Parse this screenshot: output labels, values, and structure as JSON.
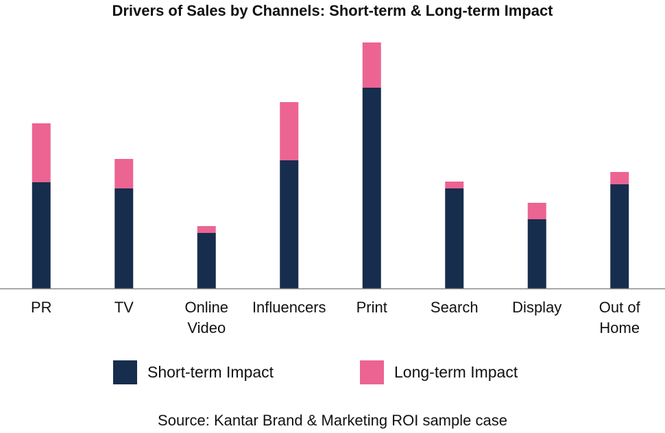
{
  "chart_data": {
    "type": "stacked_bar",
    "title": "Drivers of Sales by Channels: Short-term & Long-term Impact",
    "categories": [
      "PR",
      "TV",
      "Online Video",
      "Influencers",
      "Print",
      "Search",
      "Display",
      "Out of Home"
    ],
    "series": [
      {
        "name": "Short-term Impact",
        "color": "#172d4e",
        "values": [
          155,
          146,
          81,
          187,
          293,
          146,
          101,
          152
        ]
      },
      {
        "name": "Long-term Impact",
        "color": "#ec6492",
        "values": [
          86,
          43,
          10,
          85,
          66,
          10,
          24,
          18
        ]
      }
    ],
    "ylim": [
      0,
      380
    ],
    "source": "Source: Kantar Brand & Marketing ROI sample case"
  }
}
